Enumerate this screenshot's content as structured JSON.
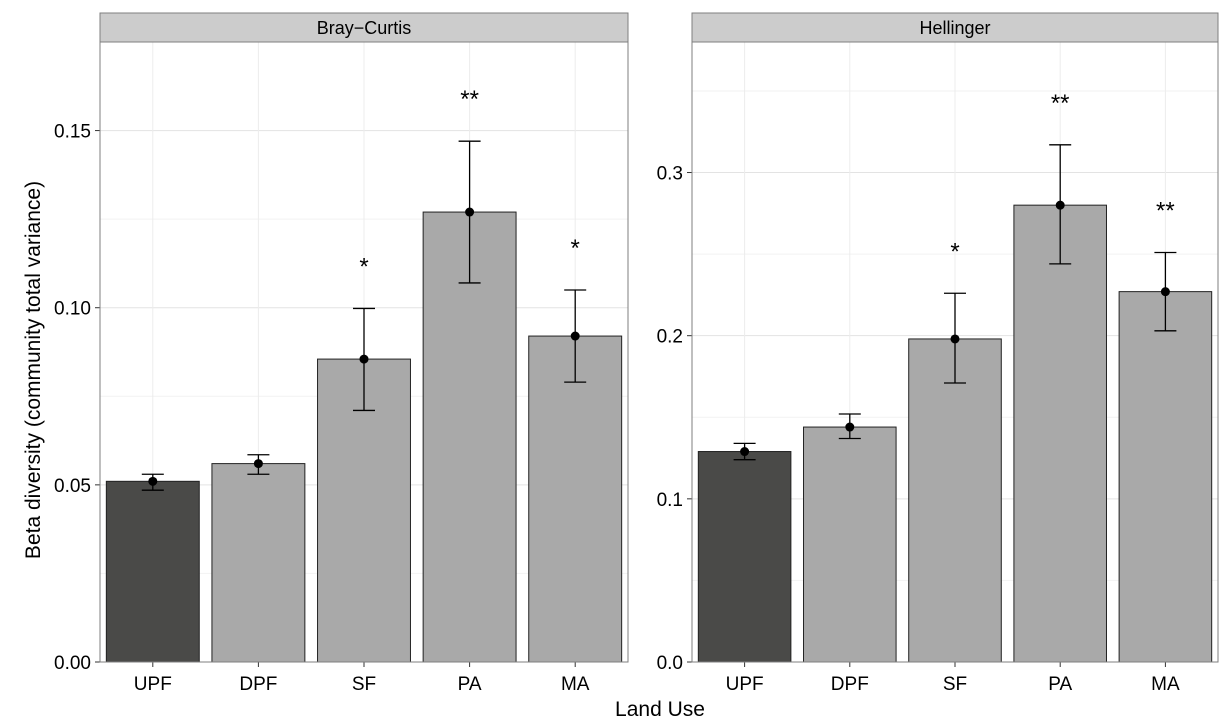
{
  "chart_data": {
    "type": "bar",
    "xlabel": "Land Use",
    "ylabel": "Beta diversity (community total variance)",
    "categories": [
      "UPF",
      "DPF",
      "SF",
      "PA",
      "MA"
    ],
    "reference_color": "#4a4a48",
    "bar_color": "#a9a9a9",
    "strip_color": "#cccccc",
    "grid": true,
    "panels": [
      {
        "title": "Bray−Curtis",
        "ylim": [
          0,
          0.175
        ],
        "yticks": [
          0.0,
          0.05,
          0.1,
          0.15
        ],
        "ytick_labels": [
          "0.00",
          "0.05",
          "0.10",
          "0.15"
        ],
        "values": [
          0.051,
          0.056,
          0.0855,
          0.127,
          0.092
        ],
        "err_low": [
          0.0485,
          0.053,
          0.071,
          0.107,
          0.079
        ],
        "err_high": [
          0.053,
          0.0585,
          0.0998,
          0.147,
          0.105
        ],
        "significance": [
          "",
          "",
          "*",
          "**",
          "*"
        ]
      },
      {
        "title": "Hellinger",
        "ylim": [
          0,
          0.38
        ],
        "yticks": [
          0.0,
          0.1,
          0.2,
          0.3
        ],
        "ytick_labels": [
          "0.0",
          "0.1",
          "0.2",
          "0.3"
        ],
        "values": [
          0.129,
          0.144,
          0.198,
          0.28,
          0.227
        ],
        "err_low": [
          0.124,
          0.137,
          0.171,
          0.244,
          0.203
        ],
        "err_high": [
          0.134,
          0.152,
          0.226,
          0.317,
          0.251
        ],
        "significance": [
          "",
          "",
          "*",
          "**",
          "**"
        ]
      }
    ]
  }
}
